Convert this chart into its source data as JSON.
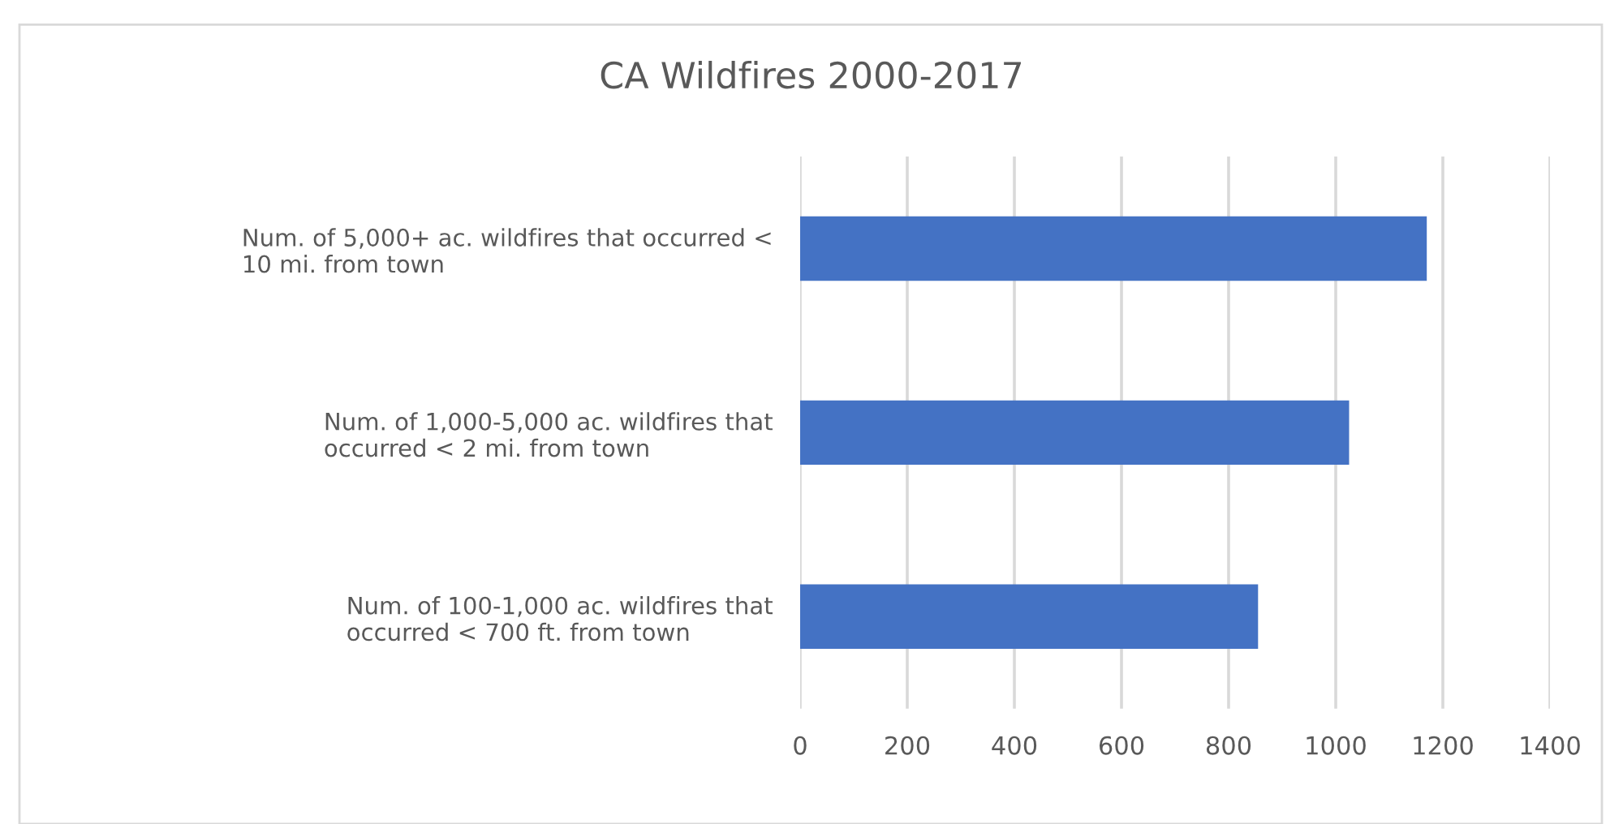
{
  "chart_data": {
    "type": "bar",
    "orientation": "horizontal",
    "title": "CA Wildfires 2000-2017",
    "categories": [
      "Num. of 5,000+ ac. wildfires that occurred <\n10 mi. from town",
      "Num. of 1,000-5,000 ac. wildfires that\noccurred < 2 mi. from town",
      "Num. of 100-1,000 ac. wildfires that\noccurred < 700 ft. from town"
    ],
    "values": [
      1170,
      1025,
      855
    ],
    "color": "#4472c4",
    "xlim": [
      0,
      1400
    ],
    "xticks": [
      0,
      200,
      400,
      600,
      800,
      1000,
      1200,
      1400
    ],
    "grid": "x"
  }
}
